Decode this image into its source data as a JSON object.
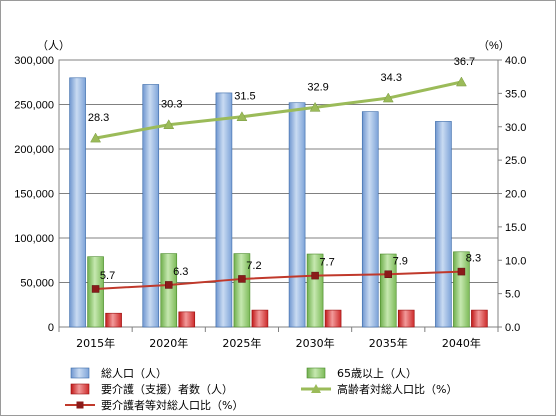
{
  "chart_data": {
    "type": "bar",
    "categories": [
      "2015年",
      "2020年",
      "2025年",
      "2030年",
      "2035年",
      "2040年"
    ],
    "y_left": {
      "unit": "（人）",
      "ylim": [
        0,
        300000
      ],
      "ticks": [
        "0",
        "50,000",
        "100,000",
        "150,000",
        "200,000",
        "250,000",
        "300,000"
      ]
    },
    "y_right": {
      "unit": "（%）",
      "ylim": [
        0,
        40
      ],
      "ticks": [
        "0.0",
        "5.0",
        "10.0",
        "15.0",
        "20.0",
        "25.0",
        "30.0",
        "35.0",
        "40.0"
      ]
    },
    "series": [
      {
        "name": "総人口（人）",
        "type": "bar",
        "axis": "left",
        "color": "#8fb4e3",
        "values": [
          280000,
          272500,
          263000,
          252000,
          242000,
          231000
        ]
      },
      {
        "name": "65歳以上（人）",
        "type": "bar",
        "axis": "left",
        "color": "#9bd27a",
        "values": [
          79000,
          82500,
          82500,
          82000,
          82000,
          84500
        ]
      },
      {
        "name": "要介護（支援）者数（人）",
        "type": "bar",
        "axis": "left",
        "color": "#e04040",
        "values": [
          15500,
          17000,
          19000,
          19000,
          19000,
          19000
        ]
      },
      {
        "name": "高齢者対総人口比（%）",
        "type": "line",
        "axis": "right",
        "color": "#9bbb59",
        "values": [
          28.3,
          30.3,
          31.5,
          32.9,
          34.3,
          36.7
        ],
        "labels": [
          "28.3",
          "30.3",
          "31.5",
          "32.9",
          "34.3",
          "36.7"
        ]
      },
      {
        "name": "要介護者等対総人口比（%）",
        "type": "line",
        "axis": "right",
        "color": "#c0392b",
        "values": [
          5.7,
          6.3,
          7.2,
          7.7,
          7.9,
          8.3
        ],
        "labels": [
          "5.7",
          "6.3",
          "7.2",
          "7.7",
          "7.9",
          "8.3"
        ]
      }
    ],
    "grid": true,
    "legend_position": "bottom"
  }
}
